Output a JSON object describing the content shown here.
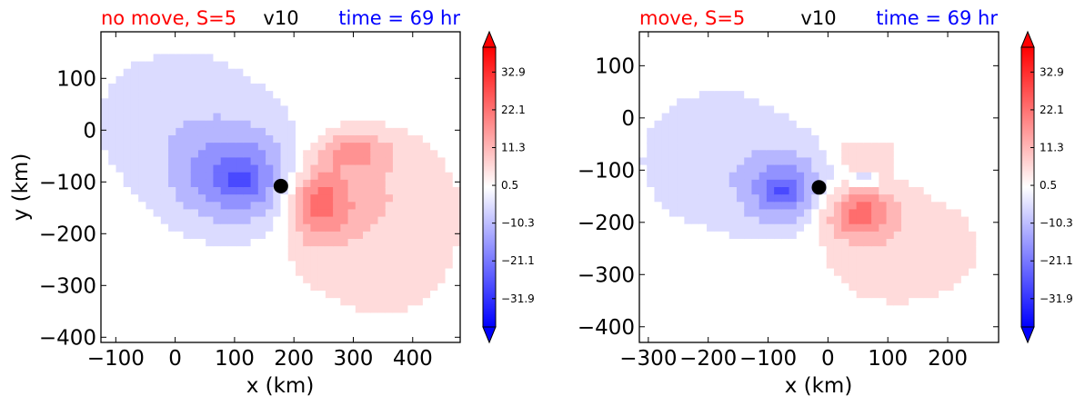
{
  "colors": {
    "title_left": "#ff0000",
    "title_center": "#000000",
    "title_right": "#0000ff",
    "cmap_min": "#0000ff",
    "cmap_mid": "#ffffff",
    "cmap_max": "#ff0000"
  },
  "chart_data": [
    {
      "type": "heatmap",
      "title_left": "no move, S=5",
      "title_center": "v10",
      "title_right": "time = 69 hr",
      "xlabel": "x (km)",
      "ylabel": "y (km)",
      "xlim": [
        -125,
        480
      ],
      "ylim": [
        -410,
        190
      ],
      "xticks": [
        -100,
        0,
        100,
        200,
        300,
        400
      ],
      "xtick_labels": [
        "−100",
        "0",
        "100",
        "200",
        "300",
        "400"
      ],
      "yticks": [
        100,
        0,
        -100,
        -200,
        -300,
        -400
      ],
      "ytick_labels": [
        "100",
        "0",
        "−100",
        "−200",
        "−300",
        "−400"
      ],
      "marker": [
        178,
        -108
      ],
      "colorbar": {
        "ticks": [
          32.9,
          22.1,
          11.3,
          0.5,
          -10.3,
          -21.1,
          -31.9
        ],
        "tick_labels": [
          "32.9",
          "22.1",
          "11.3",
          "0.5",
          "−10.3",
          "−21.1",
          "−31.9"
        ],
        "range": [
          -40,
          40
        ],
        "extend": "both"
      },
      "features": [
        {
          "x": 110,
          "y": -95,
          "sx": 105,
          "sy": 95,
          "v": -20
        },
        {
          "x": 112,
          "y": -98,
          "sx": 30,
          "sy": 25,
          "v": -10
        },
        {
          "x": 10,
          "y": 20,
          "sx": 160,
          "sy": 150,
          "v": -6
        },
        {
          "x": 240,
          "y": -140,
          "sx": 55,
          "sy": 75,
          "v": 20
        },
        {
          "x": 300,
          "y": -40,
          "sx": 60,
          "sy": 35,
          "v": 12
        },
        {
          "x": 330,
          "y": -120,
          "sx": 130,
          "sy": 120,
          "v": 8
        },
        {
          "x": 350,
          "y": -300,
          "sx": 220,
          "sy": 160,
          "v": 3
        }
      ]
    },
    {
      "type": "heatmap",
      "title_left": "move, S=5",
      "title_center": "v10",
      "title_right": "time = 69 hr",
      "xlabel": "x (km)",
      "ylabel": "",
      "xlim": [
        -315,
        285
      ],
      "ylim": [
        -430,
        165
      ],
      "xticks": [
        -300,
        -200,
        -100,
        0,
        100,
        200
      ],
      "xtick_labels": [
        "−300",
        "−200",
        "−100",
        "0",
        "100",
        "200"
      ],
      "yticks": [
        100,
        0,
        -100,
        -200,
        -300,
        -400
      ],
      "ytick_labels": [
        "100",
        "0",
        "−100",
        "−200",
        "−300",
        "−400"
      ],
      "marker": [
        -15,
        -133
      ],
      "colorbar": {
        "ticks": [
          32.9,
          22.1,
          11.3,
          0.5,
          -10.3,
          -21.1,
          -31.9
        ],
        "tick_labels": [
          "32.9",
          "22.1",
          "11.3",
          "0.5",
          "−10.3",
          "−21.1",
          "−31.9"
        ],
        "range": [
          -40,
          40
        ],
        "extend": "both"
      },
      "features": [
        {
          "x": -70,
          "y": -140,
          "sx": 70,
          "sy": 70,
          "v": -18
        },
        {
          "x": -75,
          "y": -140,
          "sx": 22,
          "sy": 20,
          "v": -10
        },
        {
          "x": -180,
          "y": -80,
          "sx": 150,
          "sy": 150,
          "v": -6
        },
        {
          "x": 50,
          "y": -180,
          "sx": 60,
          "sy": 50,
          "v": 20
        },
        {
          "x": 60,
          "y": -70,
          "sx": 50,
          "sy": 30,
          "v": 8
        },
        {
          "x": 60,
          "y": -120,
          "sx": 20,
          "sy": 15,
          "v": -12
        },
        {
          "x": 120,
          "y": -250,
          "sx": 150,
          "sy": 120,
          "v": 6
        }
      ]
    }
  ]
}
